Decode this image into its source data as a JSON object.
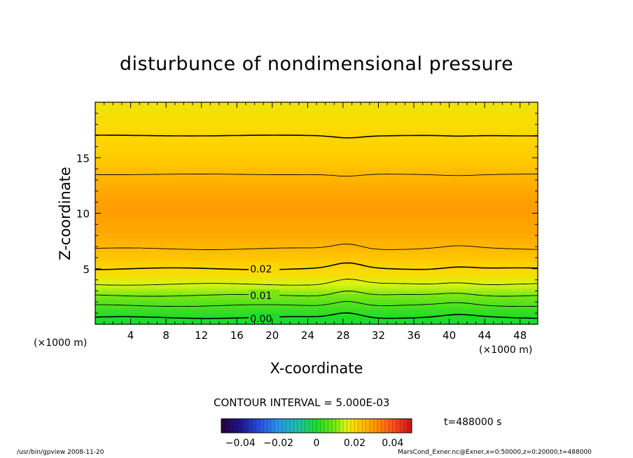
{
  "chart_data": {
    "type": "heatmap",
    "title": "disturbunce of nondimensional pressure",
    "xlabel": "X-coordinate",
    "ylabel": "Z-coordinate",
    "x_unit": "(×1000 m)",
    "xlim": [
      0,
      50
    ],
    "ylim": [
      0,
      20
    ],
    "x_ticks": [
      4,
      8,
      12,
      16,
      20,
      24,
      28,
      32,
      36,
      40,
      44,
      48
    ],
    "y_ticks": [
      5,
      10,
      15
    ],
    "contour_interval": "CONTOUR INTERVAL = 5.000E-03",
    "contour_labels": [
      {
        "text": "0.02",
        "x": 17.5,
        "y": 5.0
      },
      {
        "text": "0.01",
        "x": 17.5,
        "y": 2.6
      },
      {
        "text": "0.00",
        "x": 17.5,
        "y": 0.5
      }
    ],
    "field_profile": [
      {
        "z": 0.0,
        "value": -0.001
      },
      {
        "z": 0.6,
        "value": 0.0
      },
      {
        "z": 1.5,
        "value": 0.004
      },
      {
        "z": 2.6,
        "value": 0.01
      },
      {
        "z": 3.6,
        "value": 0.015
      },
      {
        "z": 4.5,
        "value": 0.019
      },
      {
        "z": 5.0,
        "value": 0.02
      },
      {
        "z": 6.8,
        "value": 0.025
      },
      {
        "z": 8.5,
        "value": 0.028
      },
      {
        "z": 10.5,
        "value": 0.03
      },
      {
        "z": 12.0,
        "value": 0.028
      },
      {
        "z": 13.5,
        "value": 0.025
      },
      {
        "z": 15.0,
        "value": 0.022
      },
      {
        "z": 17.0,
        "value": 0.02
      },
      {
        "z": 20.0,
        "value": 0.018
      }
    ],
    "colorbar": {
      "ticks": [
        "−0.04",
        "−0.02",
        "0",
        "0.02",
        "0.04"
      ],
      "range": [
        -0.05,
        0.05
      ]
    },
    "time": "t=488000 s"
  },
  "footer": {
    "left": "/usr/bin/gpview  2008-11-20",
    "right": "MarsCond_Exner.nc@Exner,x=0:50000,z=0:20000,t=488000"
  }
}
